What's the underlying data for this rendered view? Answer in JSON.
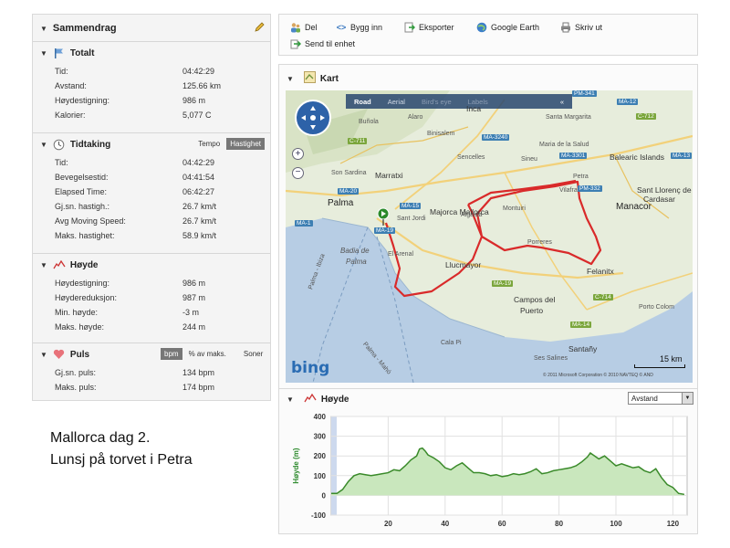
{
  "summary": {
    "title": "Sammendrag",
    "totalt": {
      "title": "Totalt",
      "rows": [
        {
          "label": "Tid:",
          "value": "04:42:29"
        },
        {
          "label": "Avstand:",
          "value": "125.66 km"
        },
        {
          "label": "Høydestigning:",
          "value": "986 m"
        },
        {
          "label": "Kalorier:",
          "value": "5,077 C"
        }
      ]
    },
    "tidtaking": {
      "title": "Tidtaking",
      "toggle_a": "Tempo",
      "toggle_b": "Hastighet",
      "rows": [
        {
          "label": "Tid:",
          "value": "04:42:29"
        },
        {
          "label": "Bevegelsestid:",
          "value": "04:41:54"
        },
        {
          "label": "Elapsed Time:",
          "value": "06:42:27"
        },
        {
          "label": "Gj.sn. hastigh.:",
          "value": "26.7 km/t"
        },
        {
          "label": "Avg Moving Speed:",
          "value": "26.7 km/t"
        },
        {
          "label": "Maks. hastighet:",
          "value": "58.9 km/t"
        }
      ]
    },
    "hoyde": {
      "title": "Høyde",
      "rows": [
        {
          "label": "Høydestigning:",
          "value": "986 m"
        },
        {
          "label": "Høydereduksjon:",
          "value": "987 m"
        },
        {
          "label": "Min. høyde:",
          "value": "-3 m"
        },
        {
          "label": "Maks. høyde:",
          "value": "244 m"
        }
      ]
    },
    "puls": {
      "title": "Puls",
      "toggle_a": "bpm",
      "toggle_b": "% av maks.",
      "toggle_c": "Soner",
      "rows": [
        {
          "label": "Gj.sn. puls:",
          "value": "134 bpm"
        },
        {
          "label": "Maks. puls:",
          "value": "174 bpm"
        }
      ]
    }
  },
  "toolbar": {
    "del": "Del",
    "bygg_inn": "Bygg inn",
    "eksporter": "Eksporter",
    "google_earth": "Google Earth",
    "skriv_ut": "Skriv ut",
    "send_til_enhet": "Send til enhet"
  },
  "map": {
    "title": "Kart",
    "tabs": [
      "Road",
      "Aerial",
      "Bird's eye",
      "Labels"
    ],
    "collapse": "«",
    "places": {
      "palma": "Palma",
      "manacor": "Manacor",
      "marratxi": "Marratxi",
      "majorca": "Majorca Mallorca",
      "llucmajor": "Llucmayor",
      "felanitx": "Felanitx",
      "campos": "Campos del",
      "puerto": "Puerto",
      "santanyi": "Santañy",
      "badia1": "Badia de",
      "badia2": "Palma",
      "bunola": "Buñola",
      "alaro": "Alaro",
      "inca": "Inca",
      "santa_margarita": "Santa Margarita",
      "binissalem": "Binisalem",
      "sencelles": "Sencelles",
      "maria": "Maria de la Salud",
      "sineu": "Sineu",
      "petra": "Petra",
      "villafranca": "Vilafranca",
      "montuiri": "Montuiri",
      "algaida": "Algaida",
      "porreres": "Porreres",
      "sant_llorenc": "Sant Llorenç de",
      "cardasar": "Cardasar",
      "balearic": "Balearic Islands",
      "son_sardina": "Son Sardina",
      "sant_jordi": "Sant Jordi",
      "el_arenal": "El Arenal",
      "porto_colom": "Porto Colom",
      "ses_salines": "Ses Salines",
      "cala_pi": "Cala Pi",
      "palma_mahon": "Palma - Mahó",
      "palma_ibiza": "Palma - Ibiza"
    },
    "roads": {
      "pm341": "PM-341",
      "ma12": "MA-12",
      "c712": "C-712",
      "ma3240": "MA-3240",
      "ma3301": "MA-3301",
      "c711": "C-711",
      "pm332": "PM-332",
      "ma20": "MA-20",
      "ma15": "MA-15",
      "ma19a": "MA-19",
      "ma1": "MA-1",
      "ma19b": "MA-19",
      "c714": "C-714",
      "ma14": "MA-14",
      "ma13": "MA-13"
    },
    "bing": "bing",
    "scale": "15 km",
    "copyright": "© 2011 Microsoft Corporation  © 2010 NAVTEQ  © AND"
  },
  "elevation": {
    "title": "Høyde",
    "select": "Avstand"
  },
  "chart_data": {
    "type": "area",
    "title": "",
    "xlabel": "",
    "ylabel": "Høyde (m)",
    "xlim": [
      0,
      125
    ],
    "ylim": [
      -100,
      400
    ],
    "yticks": [
      -100,
      0,
      100,
      200,
      300,
      400
    ],
    "xticks": [
      20,
      40,
      60,
      80,
      100,
      120
    ],
    "x": [
      0,
      2,
      4,
      6,
      8,
      10,
      12,
      14,
      16,
      18,
      20,
      22,
      24,
      26,
      28,
      30,
      31,
      32,
      33,
      34,
      36,
      38,
      40,
      42,
      44,
      46,
      48,
      50,
      52,
      54,
      56,
      58,
      60,
      62,
      64,
      66,
      68,
      70,
      72,
      74,
      76,
      78,
      80,
      82,
      84,
      86,
      88,
      90,
      91,
      92,
      94,
      96,
      98,
      100,
      102,
      104,
      106,
      108,
      110,
      112,
      114,
      116,
      118,
      120,
      122,
      124
    ],
    "y": [
      10,
      10,
      30,
      70,
      100,
      110,
      105,
      100,
      105,
      110,
      115,
      130,
      125,
      150,
      180,
      200,
      235,
      240,
      225,
      205,
      190,
      170,
      140,
      130,
      150,
      165,
      140,
      115,
      115,
      110,
      100,
      105,
      95,
      100,
      110,
      105,
      110,
      120,
      135,
      110,
      115,
      125,
      130,
      135,
      140,
      150,
      170,
      195,
      215,
      205,
      185,
      200,
      175,
      150,
      160,
      150,
      140,
      145,
      125,
      115,
      135,
      90,
      55,
      40,
      10,
      5
    ],
    "grid": true
  },
  "caption": {
    "line1": "Mallorca dag 2.",
    "line2": "Lunsj på torvet i Petra"
  }
}
